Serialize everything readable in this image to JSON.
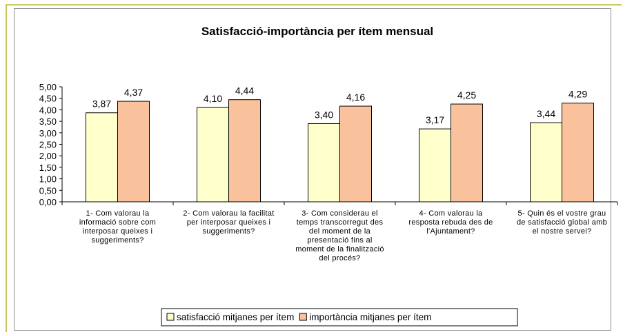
{
  "chart_data": {
    "type": "bar",
    "title": "Satisfacció-importància per ítem mensual",
    "categories": [
      "1- Com valorau la informació sobre com interposar queixes i suggeriments?",
      "2- Com valorau la facilitat per interposar queixes i suggeriments?",
      "3- Com considerau el temps transcorregut des del moment de la presentació fins al moment de la finalització del procés?",
      "4- Com valorau la resposta rebuda des de l'Ajuntament?",
      "5- Quin és el vostre grau de satisfacció global amb el nostre servei?"
    ],
    "series": [
      {
        "name": "satisfacció mitjanes per ítem",
        "color": "#ffffcc",
        "values": [
          3.87,
          4.1,
          3.4,
          3.17,
          3.44
        ],
        "value_labels": [
          "3,87",
          "4,10",
          "3,40",
          "3,17",
          "3,44"
        ]
      },
      {
        "name": "importància mitjanes per ítem",
        "color": "#fac29c",
        "values": [
          4.37,
          4.44,
          4.16,
          4.25,
          4.29
        ],
        "value_labels": [
          "4,37",
          "4,44",
          "4,16",
          "4,25",
          "4,29"
        ]
      }
    ],
    "ylim": [
      0,
      5
    ],
    "yticks": [
      {
        "value": 0,
        "label": "0,00"
      },
      {
        "value": 0.5,
        "label": "0,50"
      },
      {
        "value": 1,
        "label": "1,00"
      },
      {
        "value": 1.5,
        "label": "1,50"
      },
      {
        "value": 2,
        "label": "2,00"
      },
      {
        "value": 2.5,
        "label": "2,50"
      },
      {
        "value": 3,
        "label": "3,00"
      },
      {
        "value": 3.5,
        "label": "3,50"
      },
      {
        "value": 4,
        "label": "4,00"
      },
      {
        "value": 4.5,
        "label": "4,50"
      },
      {
        "value": 5,
        "label": "5,00"
      }
    ],
    "legend": "bottom"
  }
}
